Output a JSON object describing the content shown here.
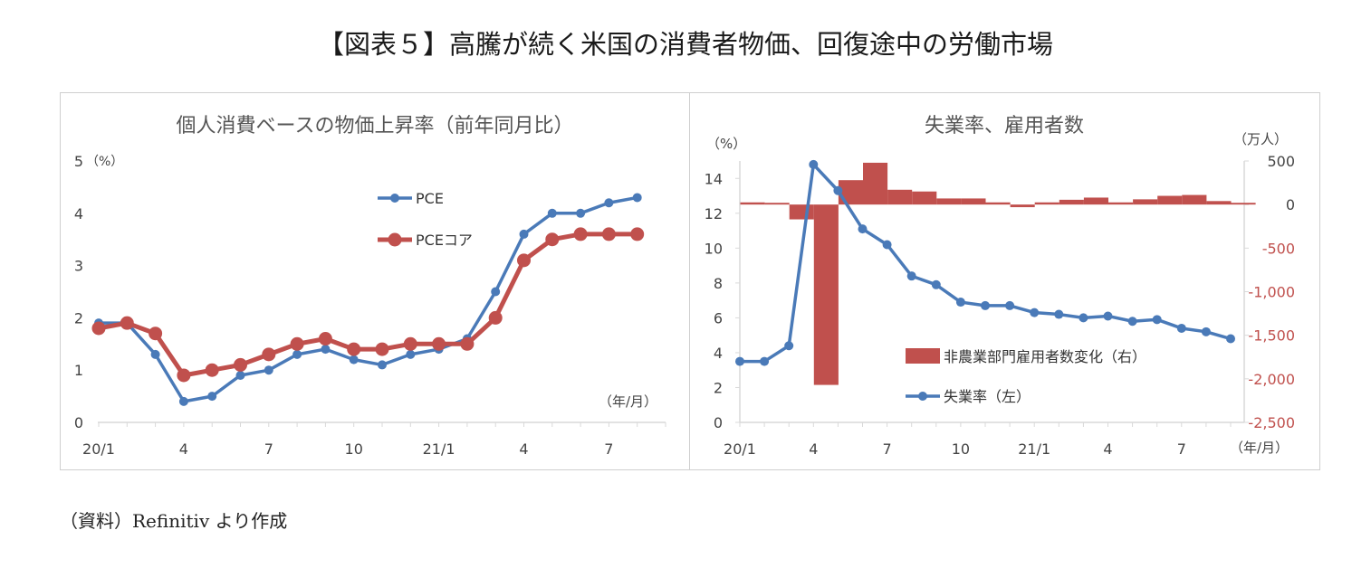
{
  "page": {
    "title": "【図表５】高騰が続く米国の消費者物価、回復途中の労働市場",
    "source": "（資料）Refinitiv より作成"
  },
  "colors": {
    "blue": "#4a7ab8",
    "red": "#c0504d",
    "axis": "#d9d9d9",
    "text": "#444444",
    "red_text": "#c0504d"
  },
  "chart_data": [
    {
      "type": "line",
      "title": "個人消費ベースの物価上昇率（前年同月比）",
      "ylabel": "（%）",
      "xlabel": "（年/月）",
      "ylim": [
        0,
        5
      ],
      "yticks": [
        0,
        1,
        2,
        3,
        4,
        5
      ],
      "x_tick_labels": [
        "20/1",
        "4",
        "7",
        "10",
        "21/1",
        "4",
        "7"
      ],
      "x_tick_index": [
        0,
        3,
        6,
        9,
        12,
        15,
        18
      ],
      "legend_position": "top-right",
      "series": [
        {
          "name": "PCE",
          "color": "#4a7ab8",
          "values": [
            1.9,
            1.9,
            1.3,
            0.4,
            0.5,
            0.9,
            1.0,
            1.3,
            1.4,
            1.2,
            1.1,
            1.3,
            1.4,
            1.6,
            2.5,
            3.6,
            4.0,
            4.0,
            4.2,
            4.3
          ]
        },
        {
          "name": "PCEコア",
          "color": "#c0504d",
          "values": [
            1.8,
            1.9,
            1.7,
            0.9,
            1.0,
            1.1,
            1.3,
            1.5,
            1.6,
            1.4,
            1.4,
            1.5,
            1.5,
            1.5,
            2.0,
            3.1,
            3.5,
            3.6,
            3.6,
            3.6
          ]
        }
      ]
    },
    {
      "type": "bar+line",
      "title": "失業率、雇用者数",
      "ylabel_left": "（%）",
      "ylabel_right": "（万人）",
      "xlabel": "（年/月）",
      "ylim_left": [
        0,
        15
      ],
      "yticks_left": [
        0,
        2,
        4,
        6,
        8,
        10,
        12,
        14
      ],
      "ylim_right": [
        -2500,
        500
      ],
      "yticks_right": [
        -2500,
        -2000,
        -1500,
        -1000,
        -500,
        0,
        500
      ],
      "yticks_right_labels": [
        "-2,500",
        "-2,000",
        "-1,500",
        "-1,000",
        "-500",
        "0",
        "500"
      ],
      "x_tick_labels": [
        "20/1",
        "4",
        "7",
        "10",
        "21/1",
        "4",
        "7"
      ],
      "x_tick_index": [
        0,
        3,
        6,
        9,
        12,
        15,
        18
      ],
      "legend_position": "bottom-right",
      "bars": {
        "name": "非農業部門雇用者数変化（右）",
        "color": "#c0504d",
        "values": [
          25,
          20,
          -170,
          -2070,
          280,
          480,
          170,
          150,
          70,
          70,
          25,
          -30,
          25,
          55,
          80,
          25,
          60,
          100,
          110,
          40,
          20
        ]
      },
      "line": {
        "name": "失業率（左）",
        "color": "#4a7ab8",
        "values": [
          3.5,
          3.5,
          4.4,
          14.8,
          13.3,
          11.1,
          10.2,
          8.4,
          7.9,
          6.9,
          6.7,
          6.7,
          6.3,
          6.2,
          6.0,
          6.1,
          5.8,
          5.9,
          5.4,
          5.2,
          4.8
        ]
      }
    }
  ]
}
